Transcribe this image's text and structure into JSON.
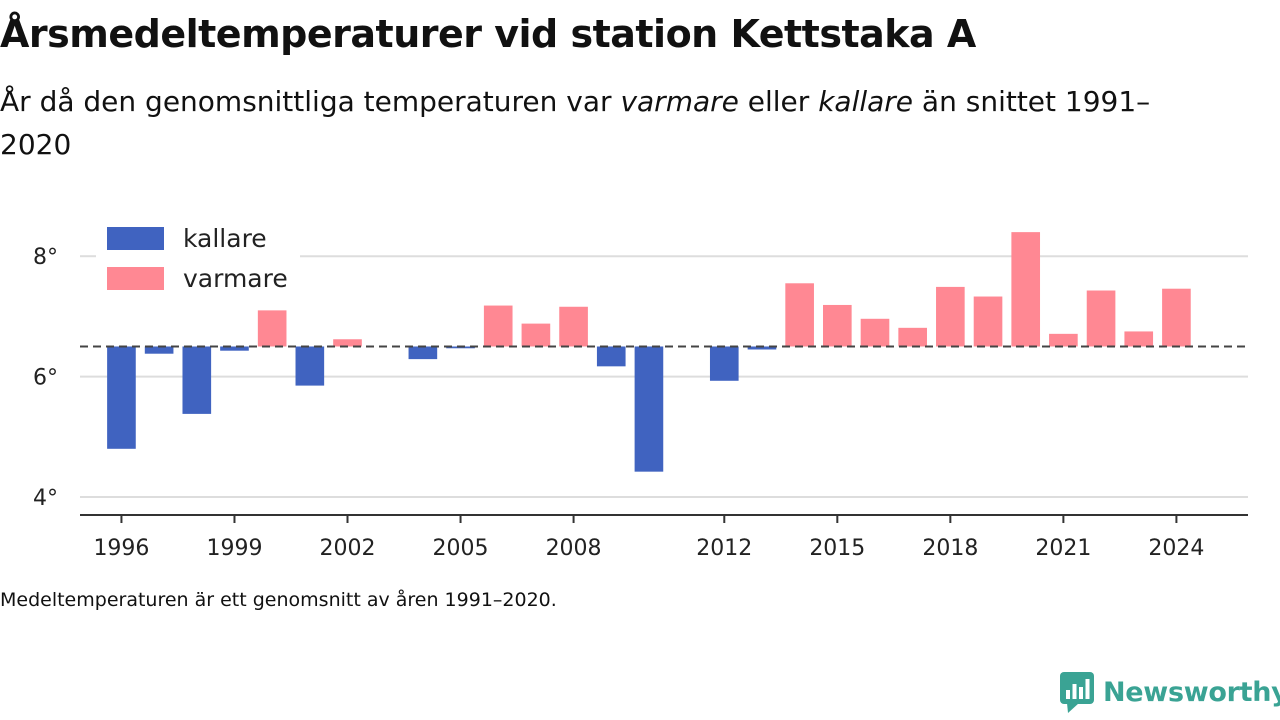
{
  "title": "Årsmedeltemperaturer vid station Kettstaka A",
  "subtitle": {
    "part1": "År då den genomsnittliga temperaturen var ",
    "warm_word": "varmare",
    "part2": " eller ",
    "cold_word": "kallare",
    "part3": " än snittet 1991–2020"
  },
  "note": "Medeltemperaturen är ett genomsnitt av åren 1991–2020.",
  "brand": {
    "name": "Newsworthy",
    "icon": "newsworthy-chart-bubble-icon",
    "color": "#3aa394"
  },
  "chart_data": {
    "type": "bar",
    "baseline": 6.5,
    "ylim": [
      3.7,
      9.1
    ],
    "yticks": [
      4,
      6,
      8
    ],
    "ytick_labels": [
      "4°",
      "6°",
      "8°"
    ],
    "xlim": [
      1994.9,
      2025.9
    ],
    "xticks": [
      1996,
      1999,
      2002,
      2005,
      2008,
      2012,
      2015,
      2018,
      2021,
      2024
    ],
    "xtick_labels": [
      "1996",
      "1999",
      "2002",
      "2005",
      "2008",
      "2012",
      "2015",
      "2018",
      "2021",
      "2024"
    ],
    "grid": true,
    "legend": {
      "position": "top-left",
      "items": [
        {
          "label": "kallare",
          "color": "#4063c0"
        },
        {
          "label": "varmare",
          "color": "#ff8893"
        }
      ]
    },
    "colors": {
      "kallare": "#4063c0",
      "varmare": "#ff8893",
      "baseline": "#444444",
      "grid": "#dddddd"
    },
    "x": [
      1996,
      1997,
      1998,
      1999,
      2000,
      2001,
      2002,
      2004,
      2005,
      2006,
      2007,
      2008,
      2009,
      2010,
      2012,
      2013,
      2014,
      2015,
      2016,
      2017,
      2018,
      2019,
      2020,
      2021,
      2022,
      2023,
      2024
    ],
    "values": [
      4.8,
      6.38,
      5.38,
      6.43,
      7.1,
      5.85,
      6.62,
      6.29,
      6.47,
      7.18,
      6.88,
      7.16,
      6.17,
      4.42,
      5.93,
      6.45,
      7.55,
      7.19,
      6.96,
      6.81,
      7.49,
      7.33,
      8.4,
      6.71,
      7.43,
      6.75,
      7.46
    ]
  }
}
